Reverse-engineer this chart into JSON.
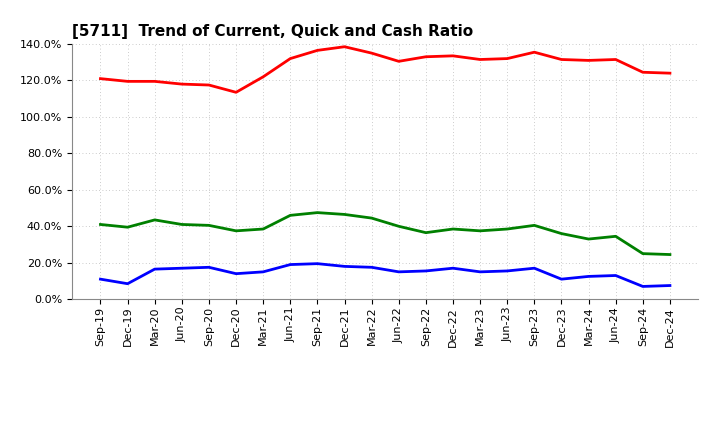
{
  "title": "[5711]  Trend of Current, Quick and Cash Ratio",
  "x_labels": [
    "Sep-19",
    "Dec-19",
    "Mar-20",
    "Jun-20",
    "Sep-20",
    "Dec-20",
    "Mar-21",
    "Jun-21",
    "Sep-21",
    "Dec-21",
    "Mar-22",
    "Jun-22",
    "Sep-22",
    "Dec-22",
    "Mar-23",
    "Jun-23",
    "Sep-23",
    "Dec-23",
    "Mar-24",
    "Jun-24",
    "Sep-24",
    "Dec-24"
  ],
  "current_ratio": [
    121.0,
    119.5,
    119.5,
    118.0,
    117.5,
    113.5,
    122.0,
    132.0,
    136.5,
    138.5,
    135.0,
    130.5,
    133.0,
    133.5,
    131.5,
    132.0,
    135.5,
    131.5,
    131.0,
    131.5,
    124.5,
    124.0
  ],
  "quick_ratio": [
    41.0,
    39.5,
    43.5,
    41.0,
    40.5,
    37.5,
    38.5,
    46.0,
    47.5,
    46.5,
    44.5,
    40.0,
    36.5,
    38.5,
    37.5,
    38.5,
    40.5,
    36.0,
    33.0,
    34.5,
    25.0,
    24.5
  ],
  "cash_ratio": [
    11.0,
    8.5,
    16.5,
    17.0,
    17.5,
    14.0,
    15.0,
    19.0,
    19.5,
    18.0,
    17.5,
    15.0,
    15.5,
    17.0,
    15.0,
    15.5,
    17.0,
    11.0,
    12.5,
    13.0,
    7.0,
    7.5
  ],
  "current_color": "#FF0000",
  "quick_color": "#008000",
  "cash_color": "#0000FF",
  "ylim": [
    0,
    140
  ],
  "yticks": [
    0,
    20,
    40,
    60,
    80,
    100,
    120,
    140
  ],
  "background_color": "#FFFFFF",
  "plot_bg_color": "#FFFFFF",
  "grid_color": "#BBBBBB",
  "line_width": 2.0,
  "title_fontsize": 11,
  "legend_fontsize": 9,
  "tick_fontsize": 8
}
